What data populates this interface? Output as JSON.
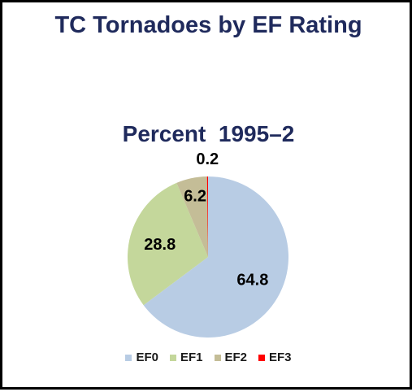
{
  "chart_data": {
    "type": "pie",
    "title": "TC Tornadoes by EF Rating",
    "subtitle": "Percent  1995–2",
    "categories": [
      "EF0",
      "EF1",
      "EF2",
      "EF3"
    ],
    "values": [
      64.8,
      28.8,
      6.2,
      0.2
    ],
    "data_labels": [
      "64.8",
      "28.8",
      "6.2",
      "0.2"
    ],
    "colors": [
      "#b8cce4",
      "#c4d79b",
      "#c4bd97",
      "#ff0000"
    ],
    "legend_position": "bottom"
  }
}
